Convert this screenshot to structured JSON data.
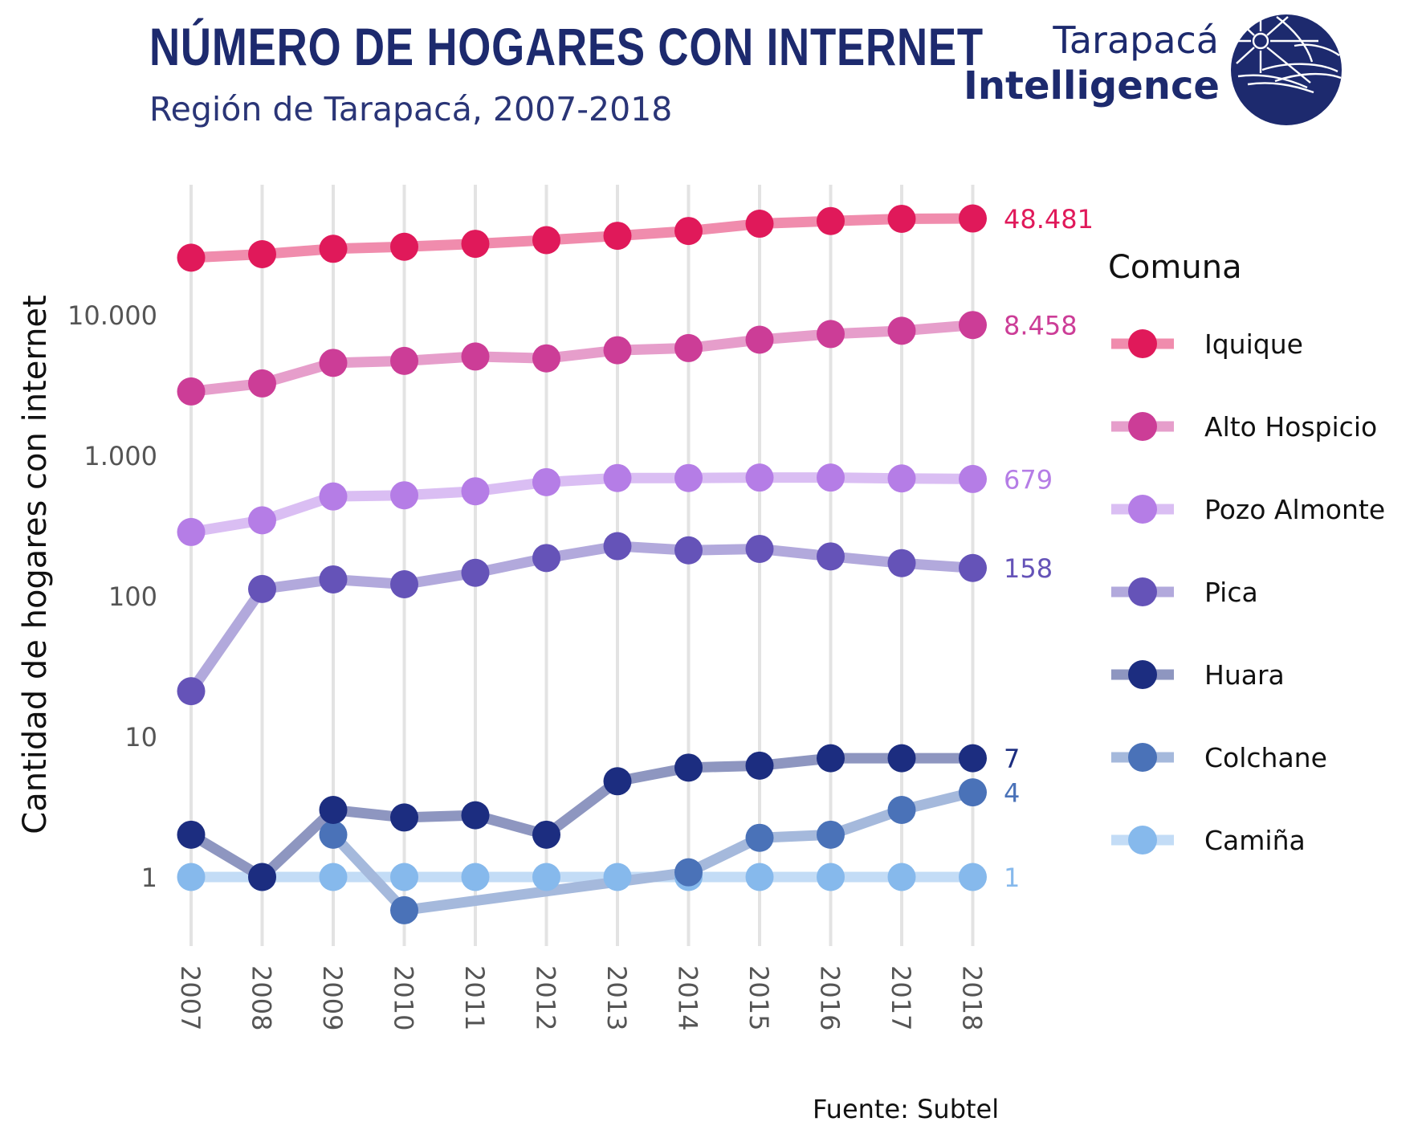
{
  "header": {
    "title": "NÚMERO DE HOGARES CON INTERNET",
    "subtitle": "Región de Tarapacá, 2007-2018"
  },
  "brand": {
    "line1": "Tarapacá",
    "line2": "Intelligence",
    "logo_icon": "globe-logo-icon",
    "color": "#1d2a6e"
  },
  "footer": {
    "source": "Fuente: Subtel"
  },
  "chart_data": {
    "type": "line",
    "title": "NÚMERO DE HOGARES CON INTERNET",
    "subtitle": "Región de Tarapacá, 2007-2018",
    "xlabel": "",
    "ylabel": "Cantidad de hogares con internet",
    "x": [
      "2007",
      "2008",
      "2009",
      "2010",
      "2011",
      "2012",
      "2013",
      "2014",
      "2015",
      "2016",
      "2017",
      "2018"
    ],
    "y_scale": "log",
    "ylim": [
      0.42,
      68000
    ],
    "y_ticks": [
      1,
      10,
      100,
      1000,
      10000
    ],
    "y_tick_labels": [
      "1",
      "10",
      "100",
      "1.000",
      "10.000"
    ],
    "grid": "vertical",
    "legend": {
      "title": "Comuna",
      "position": "right"
    },
    "series": [
      {
        "name": "Iquique",
        "color": "#e0195a",
        "values": [
          25500,
          27000,
          29500,
          30500,
          32000,
          34000,
          36500,
          39500,
          44500,
          46500,
          48200,
          48481
        ],
        "end_label": "48.481"
      },
      {
        "name": "Alto Hospicio",
        "color": "#cc3d97",
        "values": [
          2850,
          3250,
          4550,
          4700,
          5050,
          4900,
          5600,
          5800,
          6650,
          7300,
          7700,
          8458
        ],
        "end_label": "8.458"
      },
      {
        "name": "Pozo Almonte",
        "color": "#b57de6",
        "values": [
          285,
          345,
          510,
          520,
          555,
          645,
          690,
          690,
          695,
          695,
          685,
          679
        ],
        "end_label": "679"
      },
      {
        "name": "Pica",
        "color": "#6553b8",
        "values": [
          21,
          112,
          131,
          121,
          146,
          186,
          226,
          211,
          216,
          191,
          171,
          158
        ],
        "end_label": "158"
      },
      {
        "name": "Huara",
        "color": "#1c2d80",
        "values": [
          2,
          1,
          3,
          2.65,
          2.75,
          2,
          4.8,
          6,
          6.2,
          7,
          7,
          7
        ],
        "end_label": "7"
      },
      {
        "name": "Colchane",
        "color": "#4a72b8",
        "values": [
          null,
          null,
          2,
          0.58,
          null,
          null,
          null,
          1.08,
          1.9,
          2,
          3,
          4
        ],
        "end_label": "4"
      },
      {
        "name": "Camiña",
        "color": "#86b9ec",
        "values": [
          1,
          1,
          1,
          1,
          1,
          1,
          1,
          1,
          1,
          1,
          1,
          1
        ],
        "end_label": "1"
      }
    ]
  }
}
